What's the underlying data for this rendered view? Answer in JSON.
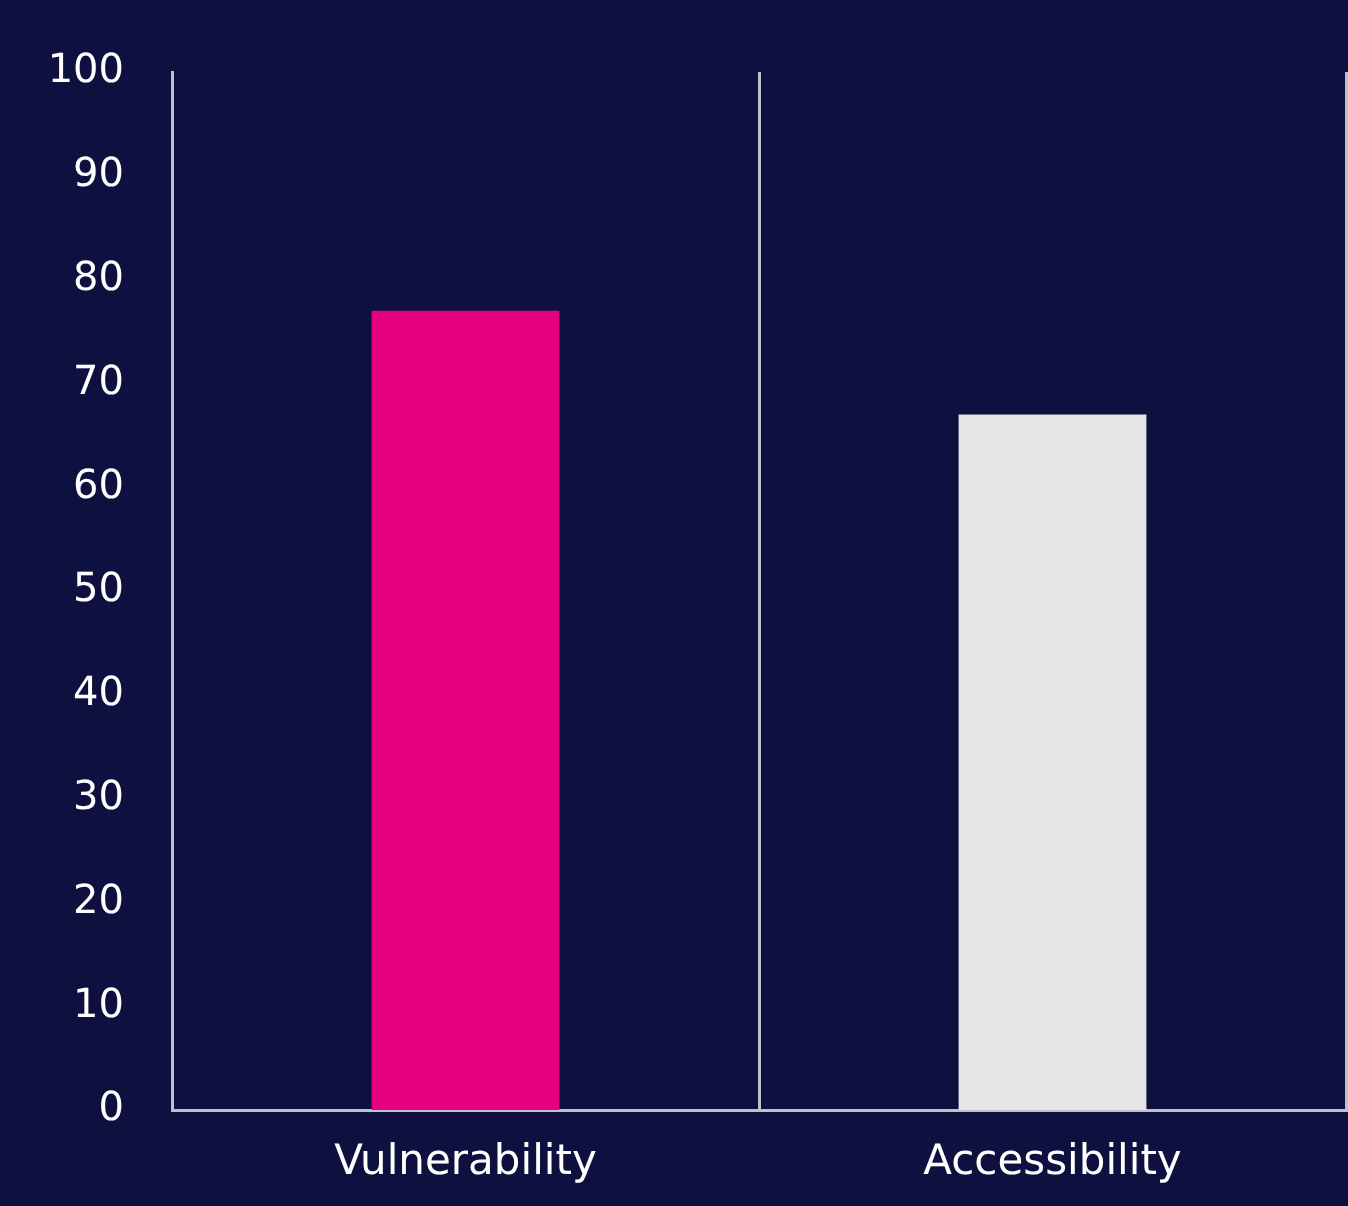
{
  "chart_data": {
    "type": "bar",
    "categories": [
      "Vulnerability",
      "Accessibility"
    ],
    "values": [
      77,
      67
    ],
    "colors": [
      "#e5007e",
      "#e5e5e5"
    ],
    "ylim": [
      0,
      100
    ],
    "yticks": [
      0,
      10,
      20,
      30,
      40,
      50,
      60,
      70,
      80,
      90,
      100
    ],
    "grid": "x",
    "legend": false
  }
}
